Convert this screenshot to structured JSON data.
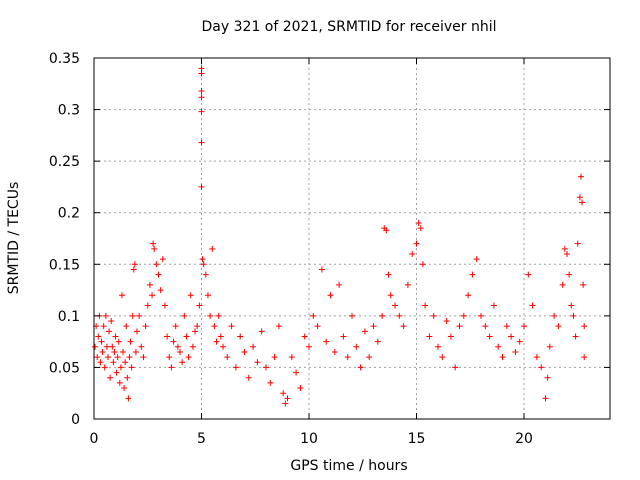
{
  "chart_data": {
    "type": "scatter",
    "title": "Day 321 of 2021, SRMTID for receiver nhil",
    "xlabel": "GPS time / hours",
    "ylabel": "SRMTID / TECUs",
    "xlim": [
      0,
      24
    ],
    "ylim": [
      0,
      0.35
    ],
    "xticks": [
      0,
      5,
      10,
      15,
      20
    ],
    "xtick_labels": [
      "0",
      "5",
      "10",
      "15",
      "20"
    ],
    "yticks": [
      0,
      0.05,
      0.1,
      0.15,
      0.2,
      0.25,
      0.3,
      0.35
    ],
    "ytick_labels": [
      "0",
      "0.05",
      "0.1",
      "0.15",
      "0.2",
      "0.25",
      "0.3",
      "0.35"
    ],
    "grid": true,
    "marker": "+",
    "marker_color": "#ff0000",
    "series": [
      {
        "name": "SRMTID",
        "points": [
          [
            0.05,
            0.07
          ],
          [
            0.1,
            0.09
          ],
          [
            0.15,
            0.06
          ],
          [
            0.2,
            0.08
          ],
          [
            0.25,
            0.1
          ],
          [
            0.3,
            0.055
          ],
          [
            0.35,
            0.075
          ],
          [
            0.4,
            0.065
          ],
          [
            0.45,
            0.09
          ],
          [
            0.5,
            0.05
          ],
          [
            0.55,
            0.1
          ],
          [
            0.6,
            0.07
          ],
          [
            0.65,
            0.06
          ],
          [
            0.7,
            0.085
          ],
          [
            0.75,
            0.04
          ],
          [
            0.8,
            0.095
          ],
          [
            0.85,
            0.07
          ],
          [
            0.9,
            0.055
          ],
          [
            0.95,
            0.065
          ],
          [
            1.0,
            0.08
          ],
          [
            1.05,
            0.045
          ],
          [
            1.1,
            0.06
          ],
          [
            1.15,
            0.075
          ],
          [
            1.2,
            0.035
          ],
          [
            1.25,
            0.05
          ],
          [
            1.3,
            0.12
          ],
          [
            1.35,
            0.065
          ],
          [
            1.4,
            0.03
          ],
          [
            1.45,
            0.055
          ],
          [
            1.5,
            0.09
          ],
          [
            1.55,
            0.04
          ],
          [
            1.6,
            0.02
          ],
          [
            1.65,
            0.06
          ],
          [
            1.7,
            0.075
          ],
          [
            1.75,
            0.05
          ],
          [
            1.8,
            0.1
          ],
          [
            1.85,
            0.145
          ],
          [
            1.9,
            0.15
          ],
          [
            1.95,
            0.065
          ],
          [
            2.0,
            0.085
          ],
          [
            2.1,
            0.1
          ],
          [
            2.2,
            0.07
          ],
          [
            2.3,
            0.06
          ],
          [
            2.4,
            0.09
          ],
          [
            2.5,
            0.11
          ],
          [
            2.6,
            0.13
          ],
          [
            2.7,
            0.12
          ],
          [
            2.75,
            0.17
          ],
          [
            2.8,
            0.165
          ],
          [
            2.9,
            0.15
          ],
          [
            3.0,
            0.14
          ],
          [
            3.1,
            0.125
          ],
          [
            3.2,
            0.155
          ],
          [
            3.3,
            0.11
          ],
          [
            3.4,
            0.08
          ],
          [
            3.5,
            0.06
          ],
          [
            3.6,
            0.05
          ],
          [
            3.7,
            0.075
          ],
          [
            3.8,
            0.09
          ],
          [
            3.9,
            0.07
          ],
          [
            4.0,
            0.065
          ],
          [
            4.1,
            0.055
          ],
          [
            4.2,
            0.1
          ],
          [
            4.3,
            0.08
          ],
          [
            4.4,
            0.06
          ],
          [
            4.5,
            0.12
          ],
          [
            4.6,
            0.07
          ],
          [
            4.7,
            0.085
          ],
          [
            4.8,
            0.09
          ],
          [
            4.9,
            0.11
          ],
          [
            5.0,
            0.34
          ],
          [
            5.0,
            0.335
          ],
          [
            5.0,
            0.318
          ],
          [
            5.0,
            0.312
          ],
          [
            5.0,
            0.298
          ],
          [
            5.0,
            0.268
          ],
          [
            5.0,
            0.225
          ],
          [
            5.05,
            0.155
          ],
          [
            5.1,
            0.15
          ],
          [
            5.2,
            0.14
          ],
          [
            5.3,
            0.12
          ],
          [
            5.4,
            0.1
          ],
          [
            5.5,
            0.165
          ],
          [
            5.6,
            0.09
          ],
          [
            5.7,
            0.075
          ],
          [
            5.8,
            0.1
          ],
          [
            5.9,
            0.08
          ],
          [
            6.0,
            0.07
          ],
          [
            6.2,
            0.06
          ],
          [
            6.4,
            0.09
          ],
          [
            6.6,
            0.05
          ],
          [
            6.8,
            0.08
          ],
          [
            7.0,
            0.065
          ],
          [
            7.2,
            0.04
          ],
          [
            7.4,
            0.07
          ],
          [
            7.6,
            0.055
          ],
          [
            7.8,
            0.085
          ],
          [
            8.0,
            0.05
          ],
          [
            8.2,
            0.035
          ],
          [
            8.4,
            0.06
          ],
          [
            8.6,
            0.09
          ],
          [
            8.8,
            0.025
          ],
          [
            8.9,
            0.015
          ],
          [
            9.0,
            0.02
          ],
          [
            9.2,
            0.06
          ],
          [
            9.4,
            0.045
          ],
          [
            9.6,
            0.03
          ],
          [
            9.8,
            0.08
          ],
          [
            10.0,
            0.07
          ],
          [
            10.2,
            0.1
          ],
          [
            10.4,
            0.09
          ],
          [
            10.6,
            0.145
          ],
          [
            10.8,
            0.075
          ],
          [
            11.0,
            0.12
          ],
          [
            11.2,
            0.065
          ],
          [
            11.4,
            0.13
          ],
          [
            11.6,
            0.08
          ],
          [
            11.8,
            0.06
          ],
          [
            12.0,
            0.1
          ],
          [
            12.2,
            0.07
          ],
          [
            12.4,
            0.05
          ],
          [
            12.6,
            0.085
          ],
          [
            12.8,
            0.06
          ],
          [
            13.0,
            0.09
          ],
          [
            13.2,
            0.075
          ],
          [
            13.4,
            0.1
          ],
          [
            13.5,
            0.185
          ],
          [
            13.6,
            0.183
          ],
          [
            13.7,
            0.14
          ],
          [
            13.8,
            0.12
          ],
          [
            14.0,
            0.11
          ],
          [
            14.2,
            0.1
          ],
          [
            14.4,
            0.09
          ],
          [
            14.6,
            0.13
          ],
          [
            14.8,
            0.16
          ],
          [
            15.0,
            0.17
          ],
          [
            15.1,
            0.19
          ],
          [
            15.2,
            0.185
          ],
          [
            15.3,
            0.15
          ],
          [
            15.4,
            0.11
          ],
          [
            15.6,
            0.08
          ],
          [
            15.8,
            0.1
          ],
          [
            16.0,
            0.07
          ],
          [
            16.2,
            0.06
          ],
          [
            16.4,
            0.095
          ],
          [
            16.6,
            0.08
          ],
          [
            16.8,
            0.05
          ],
          [
            17.0,
            0.09
          ],
          [
            17.2,
            0.1
          ],
          [
            17.4,
            0.12
          ],
          [
            17.6,
            0.14
          ],
          [
            17.8,
            0.155
          ],
          [
            18.0,
            0.1
          ],
          [
            18.2,
            0.09
          ],
          [
            18.4,
            0.08
          ],
          [
            18.6,
            0.11
          ],
          [
            18.8,
            0.07
          ],
          [
            19.0,
            0.06
          ],
          [
            19.2,
            0.09
          ],
          [
            19.4,
            0.08
          ],
          [
            19.6,
            0.065
          ],
          [
            19.8,
            0.075
          ],
          [
            20.0,
            0.09
          ],
          [
            20.2,
            0.14
          ],
          [
            20.4,
            0.11
          ],
          [
            20.6,
            0.06
          ],
          [
            20.8,
            0.05
          ],
          [
            21.0,
            0.02
          ],
          [
            21.1,
            0.04
          ],
          [
            21.2,
            0.07
          ],
          [
            21.4,
            0.1
          ],
          [
            21.6,
            0.09
          ],
          [
            21.8,
            0.13
          ],
          [
            21.9,
            0.165
          ],
          [
            22.0,
            0.16
          ],
          [
            22.1,
            0.14
          ],
          [
            22.2,
            0.11
          ],
          [
            22.3,
            0.1
          ],
          [
            22.4,
            0.08
          ],
          [
            22.5,
            0.17
          ],
          [
            22.6,
            0.215
          ],
          [
            22.65,
            0.235
          ],
          [
            22.7,
            0.21
          ],
          [
            22.75,
            0.13
          ],
          [
            22.8,
            0.09
          ],
          [
            22.8,
            0.06
          ]
        ]
      }
    ]
  }
}
